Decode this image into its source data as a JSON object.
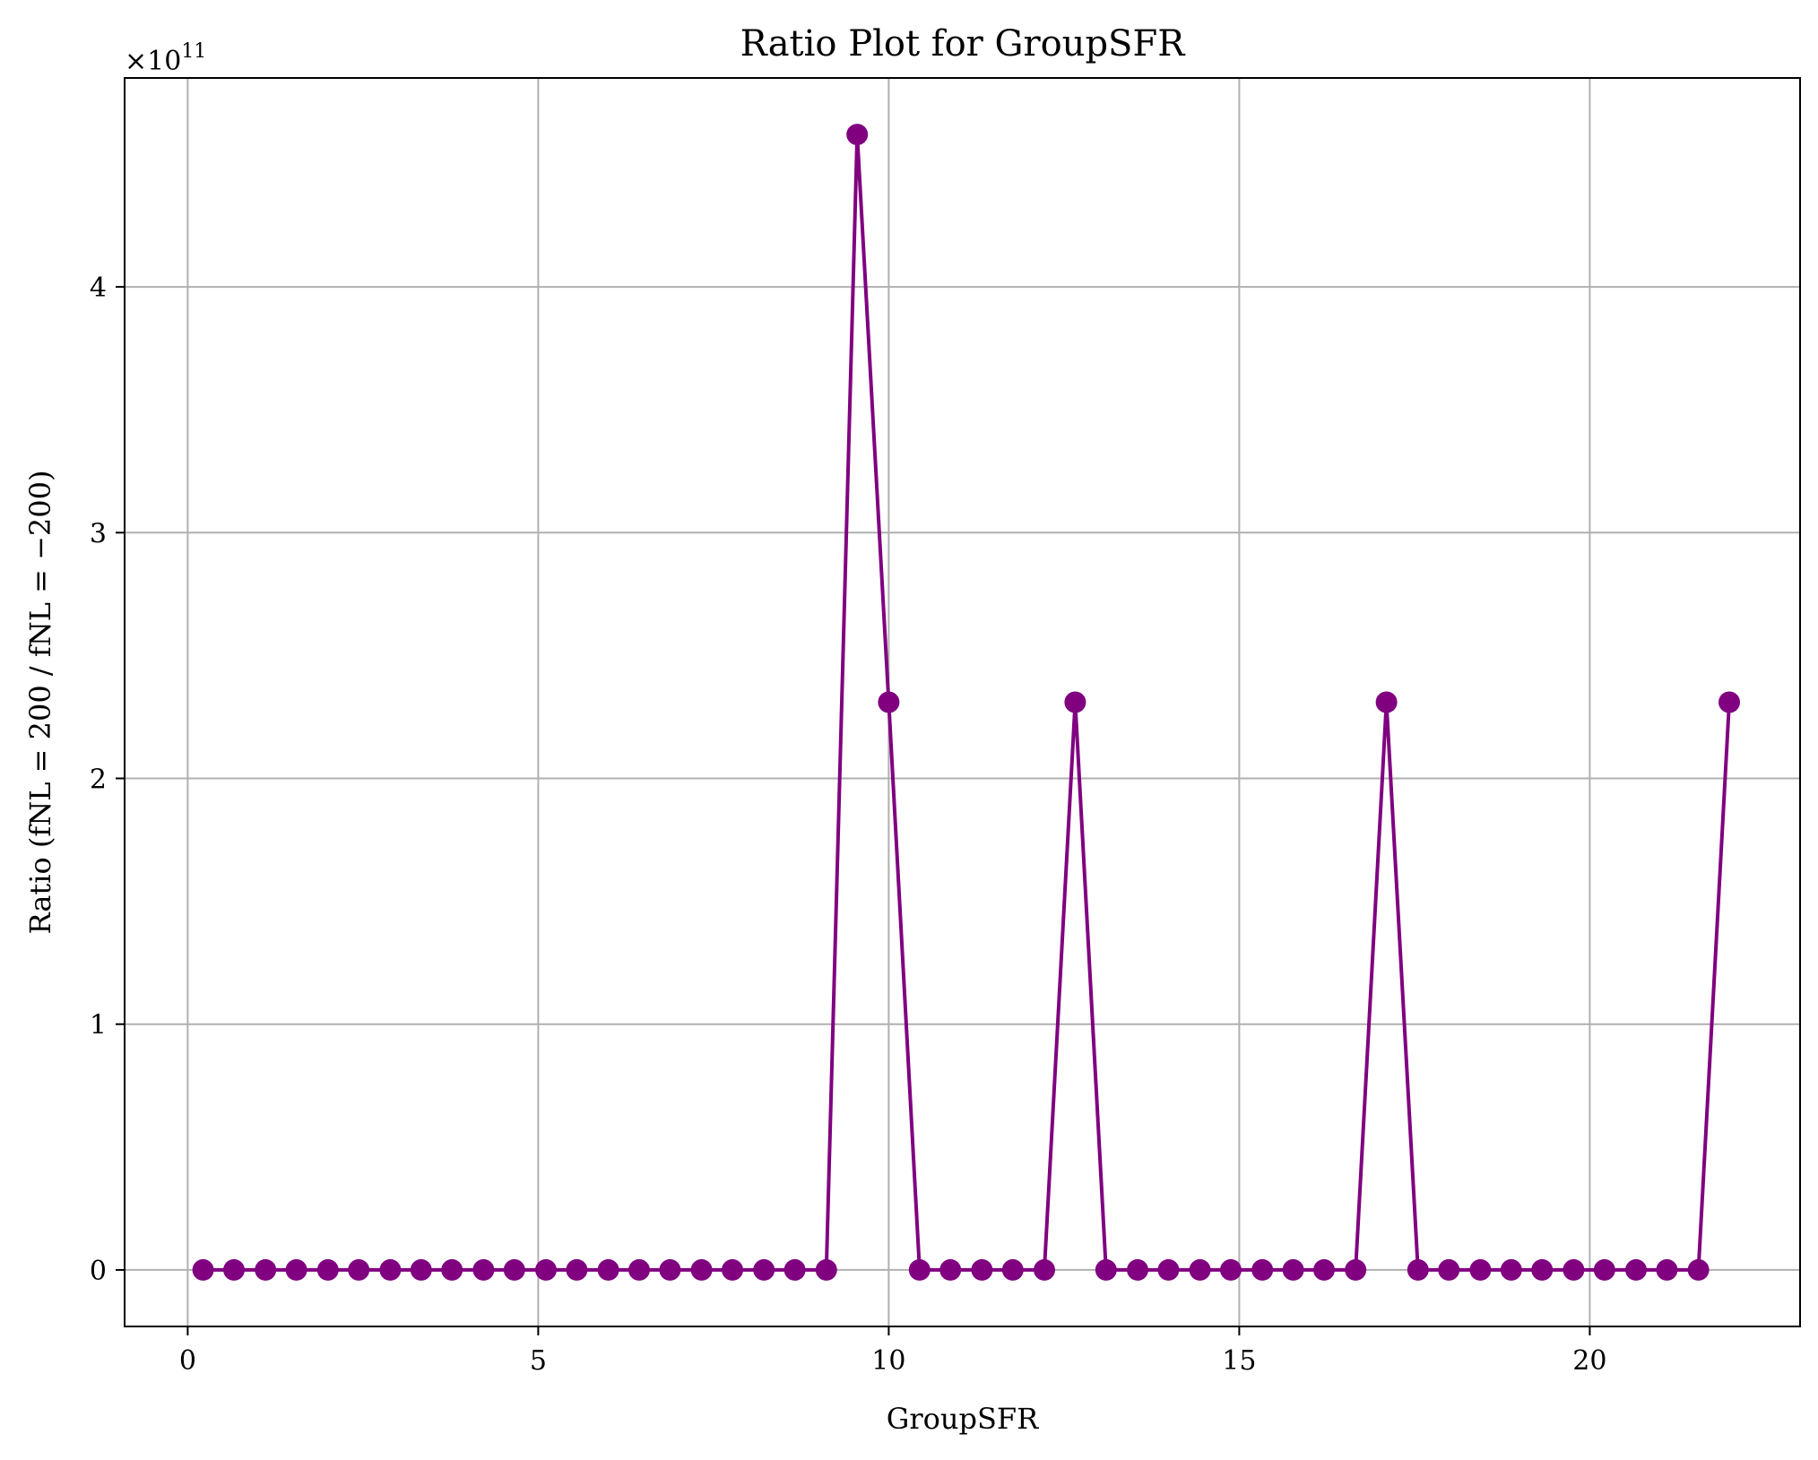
{
  "chart_data": {
    "type": "line",
    "title": "Ratio Plot for GroupSFR",
    "xlabel": "GroupSFR",
    "ylabel": "Ratio (fNL = 200 / fNL = −200)",
    "y_multiplier": "×10",
    "y_multiplier_exponent": "11",
    "xlim": [
      -0.9,
      23.0
    ],
    "ylim": [
      -0.23,
      4.85
    ],
    "x_ticks": [
      0,
      5,
      10,
      15,
      20
    ],
    "y_ticks": [
      0,
      1,
      2,
      3,
      4
    ],
    "x_tick_labels": [
      "0",
      "5",
      "10",
      "15",
      "20"
    ],
    "y_tick_labels": [
      "0",
      "1",
      "2",
      "3",
      "4"
    ],
    "grid": true,
    "series": [
      {
        "color": "#800080",
        "marker": "circle",
        "x": [
          0.22,
          0.66,
          1.11,
          1.55,
          2.0,
          2.44,
          2.89,
          3.33,
          3.77,
          4.22,
          4.66,
          5.11,
          5.55,
          6.0,
          6.44,
          6.88,
          7.33,
          7.77,
          8.22,
          8.66,
          9.11,
          9.55,
          10.0,
          10.44,
          10.88,
          11.33,
          11.77,
          12.22,
          12.66,
          13.1,
          13.55,
          13.99,
          14.44,
          14.88,
          15.33,
          15.77,
          16.21,
          16.66,
          17.1,
          17.55,
          17.99,
          18.44,
          18.88,
          19.32,
          19.77,
          20.21,
          20.66,
          21.1,
          21.55,
          21.99
        ],
        "y": [
          0,
          0,
          0,
          0,
          0,
          0,
          0,
          0,
          0,
          0,
          0,
          0,
          0,
          0,
          0,
          0,
          0,
          0,
          0,
          0,
          0,
          4.62,
          2.31,
          0,
          0,
          0,
          0,
          0,
          2.31,
          0,
          0,
          0,
          0,
          0,
          0,
          0,
          0,
          0,
          2.31,
          0,
          0,
          0,
          0,
          0,
          0,
          0,
          0,
          0,
          0,
          2.31
        ]
      }
    ]
  }
}
